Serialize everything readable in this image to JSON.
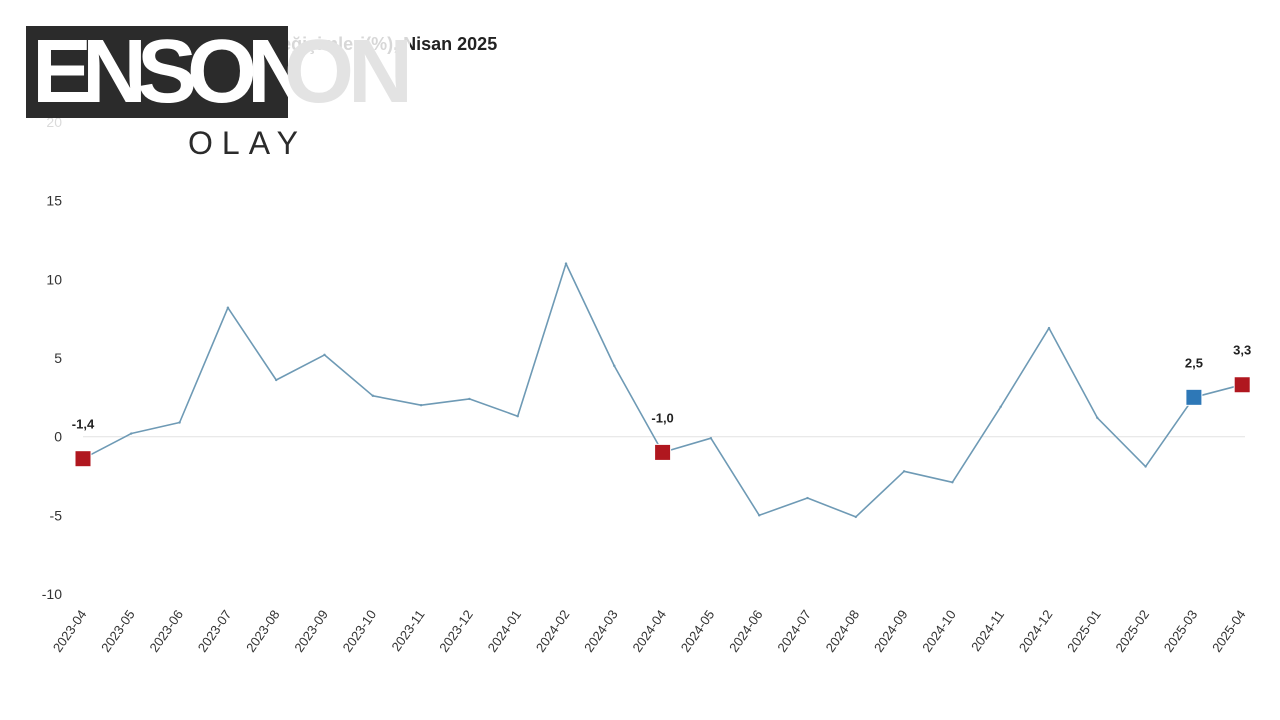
{
  "chart_data": {
    "type": "line",
    "title": "Sanayi üretim endeksi yıllık değişimleri(%), Nisan 2025",
    "xlabel": "",
    "ylabel": "",
    "ylim": [
      -10,
      20
    ],
    "yticks": [
      "20",
      "15",
      "10",
      "5",
      "0",
      "-5",
      "-10"
    ],
    "categories": [
      "2023-04",
      "2023-05",
      "2023-06",
      "2023-07",
      "2023-08",
      "2023-09",
      "2023-10",
      "2023-11",
      "2023-12",
      "2024-01",
      "2024-02",
      "2024-03",
      "2024-04",
      "2024-05",
      "2024-06",
      "2024-07",
      "2024-08",
      "2024-09",
      "2024-10",
      "2024-11",
      "2024-12",
      "2025-01",
      "2025-02",
      "2025-03",
      "2025-04"
    ],
    "series": [
      {
        "values": [
          -1.4,
          0.2,
          0.9,
          8.2,
          3.6,
          5.2,
          2.6,
          2.0,
          2.4,
          1.3,
          11.0,
          4.5,
          -1.0,
          -0.1,
          -5.0,
          -3.9,
          -5.1,
          -2.2,
          -2.9,
          1.9,
          6.9,
          1.2,
          -1.9,
          2.5,
          3.3
        ],
        "color": "#6e9ab5"
      }
    ],
    "highlights": [
      {
        "index": 0,
        "label": "-1,4",
        "color": "#b0171f"
      },
      {
        "index": 12,
        "label": "-1,0",
        "color": "#b0171f"
      },
      {
        "index": 23,
        "label": "2,5",
        "color": "#2e78b7"
      },
      {
        "index": 24,
        "label": "3,3",
        "color": "#b0171f"
      }
    ],
    "grid": false,
    "zero_line_color": "#e6e6e6"
  },
  "logo": {
    "main": "ENSON",
    "ghost": "ON",
    "sub": "OLAY"
  }
}
